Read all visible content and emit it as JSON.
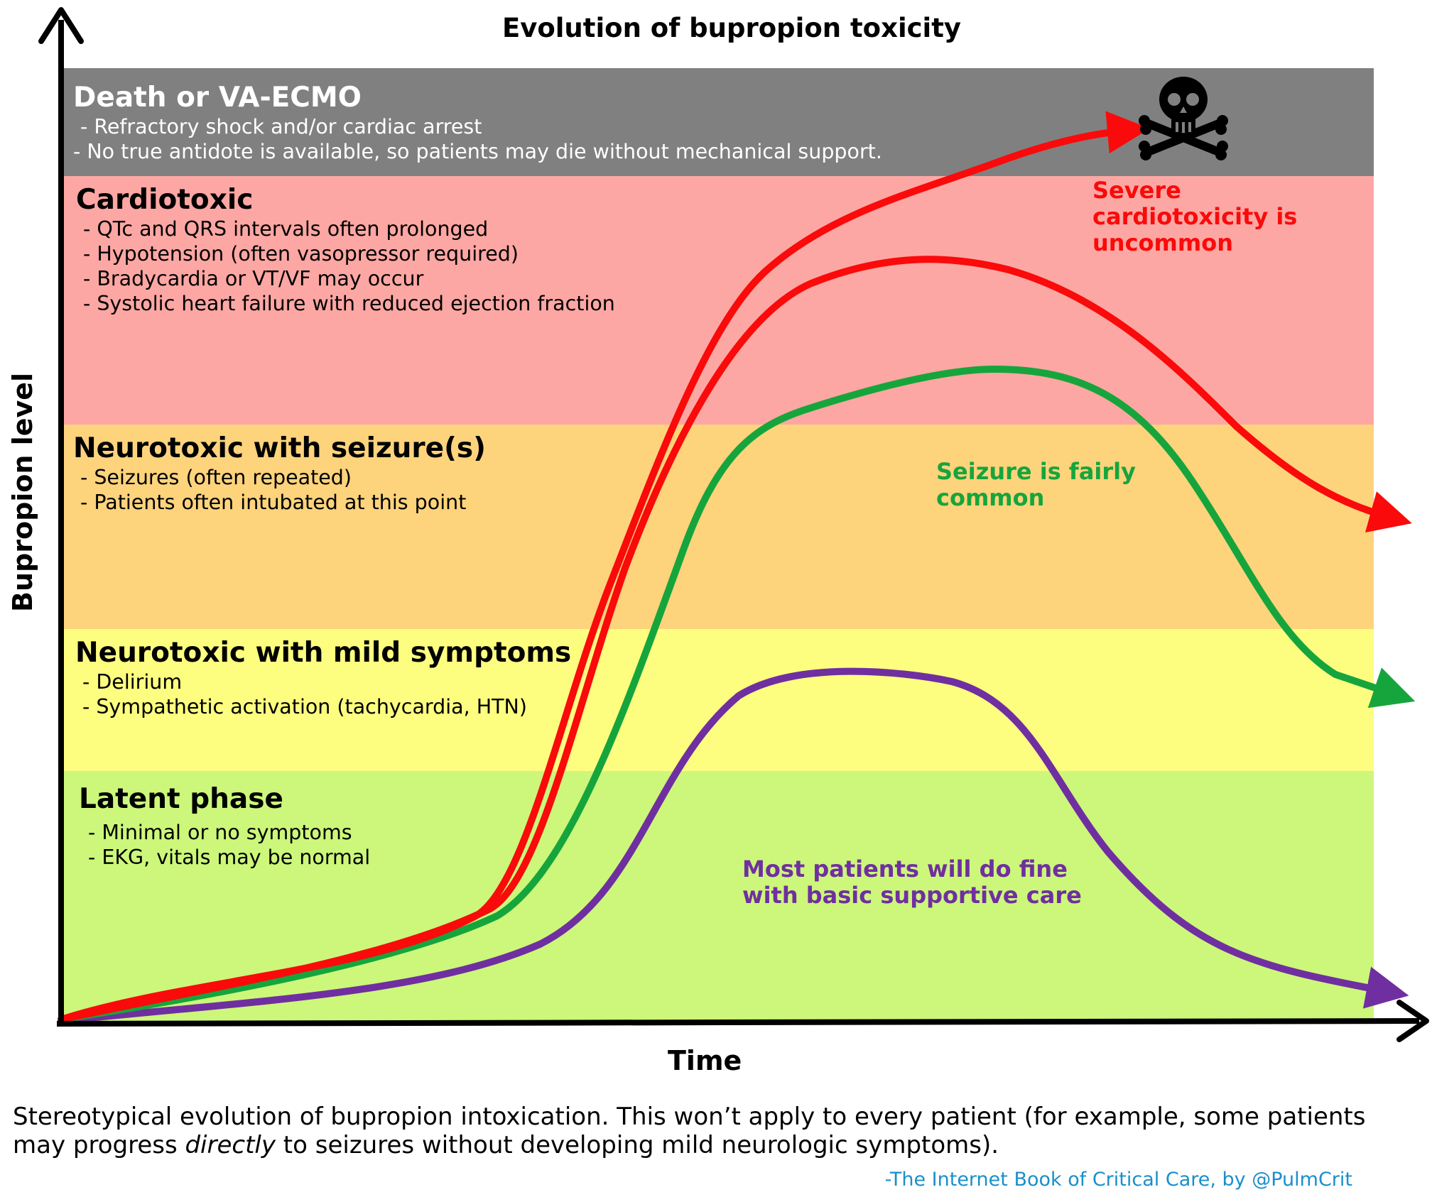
{
  "title": "Evolution of bupropion toxicity",
  "axes": {
    "x_label": "Time",
    "y_label": "Bupropion level"
  },
  "zones": [
    {
      "id": "death",
      "title": "Death or VA-ECMO",
      "color": "#808080",
      "bullets": [
        "- Refractory shock and/or cardiac arrest",
        "- No true antidote is available, so patients may die without mechanical support."
      ]
    },
    {
      "id": "cardiotoxic",
      "title": "Cardiotoxic",
      "color": "#fca7a3",
      "bullets": [
        "- QTc and QRS intervals often prolonged",
        "- Hypotension (often vasopressor required)",
        "- Bradycardia or VT/VF may occur",
        "- Systolic heart failure with reduced ejection fraction"
      ]
    },
    {
      "id": "seizure",
      "title": "Neurotoxic with seizure(s)",
      "color": "#fdd37c",
      "bullets": [
        "- Seizures (often repeated)",
        "- Patients often intubated at this point"
      ]
    },
    {
      "id": "mild",
      "title": "Neurotoxic with mild symptoms",
      "color": "#fdfd80",
      "bullets": [
        "- Delirium",
        "- Sympathetic activation (tachycardia, HTN)"
      ]
    },
    {
      "id": "latent",
      "title": "Latent phase",
      "color": "#ccf77a",
      "bullets": [
        "- Minimal or no symptoms",
        "- EKG, vitals may be normal"
      ]
    }
  ],
  "curves": [
    {
      "id": "death-course",
      "color": "#fa0a0a",
      "arrow_target": "death",
      "icon": "skull-crossbones-icon"
    },
    {
      "id": "cardiotoxic-course",
      "color": "#fa0a0a",
      "arrow_target": "seizure"
    },
    {
      "id": "seizure-course",
      "color": "#16a53c",
      "arrow_target": "mild"
    },
    {
      "id": "mild-course",
      "color": "#702fa0",
      "arrow_target": "latent"
    }
  ],
  "annotations": {
    "cardio": [
      "Severe",
      "cardiotoxicity is",
      "uncommon"
    ],
    "seizure": [
      "Seizure is fairly",
      "common"
    ],
    "mild": [
      "Most patients will do fine",
      "with basic supportive care"
    ]
  },
  "caption": {
    "part1": "Stereotypical evolution of bupropion intoxication.  This won’t apply to every patient (for example, some patients may progress ",
    "emphasis": "directly",
    "part2": " to seizures without developing mild neurologic symptoms)."
  },
  "credit": "-The Internet Book of Critical Care, by @PulmCrit"
}
